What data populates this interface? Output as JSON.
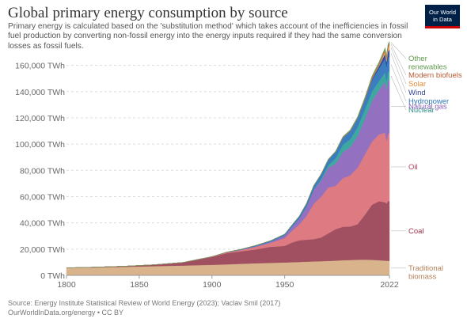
{
  "header": {
    "title": "Global primary energy consumption by source",
    "subtitle": "Primary energy is calculated based on the 'substitution method' which takes account of the inefficiencies in fossil fuel production by converting non-fossil energy into the energy inputs required if they had the same conversion losses as fossil fuels.",
    "logo_line1": "Our World",
    "logo_line2": "in Data"
  },
  "footer": {
    "source": "Source: Energy Institute Statistical Review of World Energy (2023); Vaclav Smil (2017)",
    "link": "OurWorldInData.org/energy • CC BY"
  },
  "chart_data": {
    "type": "area",
    "stacked": true,
    "x": [
      1800,
      1820,
      1840,
      1860,
      1880,
      1900,
      1910,
      1920,
      1930,
      1940,
      1950,
      1955,
      1960,
      1965,
      1970,
      1975,
      1980,
      1985,
      1990,
      1995,
      2000,
      2005,
      2010,
      2015,
      2019,
      2020,
      2021,
      2022
    ],
    "xticks": [
      "1800",
      "1850",
      "1900",
      "1950",
      "2022"
    ],
    "yticks": [
      "0 TWh",
      "20,000 TWh",
      "40,000 TWh",
      "60,000 TWh",
      "80,000 TWh",
      "100,000 TWh",
      "120,000 TWh",
      "140,000 TWh",
      "160,000 TWh"
    ],
    "ylim": [
      0,
      170000
    ],
    "grid": true,
    "series": [
      {
        "name": "Traditional biomass",
        "color": "#d9b38c",
        "label_color": "#b5805a",
        "values": [
          5600,
          6000,
          6500,
          7000,
          7500,
          8000,
          8400,
          8800,
          9200,
          9500,
          9800,
          10000,
          10200,
          10400,
          10600,
          10800,
          11000,
          11200,
          11500,
          11700,
          11900,
          12000,
          11800,
          11500,
          11200,
          11100,
          11100,
          11100
        ]
      },
      {
        "name": "Coal",
        "color": "#a05060",
        "label_color": "#a0344a",
        "values": [
          100,
          250,
          500,
          1100,
          2300,
          6000,
          8500,
          9500,
          10500,
          12200,
          12600,
          15000,
          16500,
          16800,
          17000,
          18000,
          21000,
          24000,
          25500,
          25500,
          27000,
          34000,
          42000,
          45000,
          44500,
          43500,
          45500,
          45500
        ]
      },
      {
        "name": "Oil",
        "color": "#dd7a82",
        "label_color": "#c1405f",
        "values": [
          0,
          0,
          0,
          0,
          5,
          200,
          500,
          1000,
          2000,
          3000,
          6000,
          9000,
          12000,
          18000,
          27000,
          31000,
          35000,
          33000,
          37000,
          39000,
          43000,
          46000,
          48000,
          51000,
          53000,
          48000,
          51000,
          52000
        ]
      },
      {
        "name": "Natural gas",
        "color": "#9370c0",
        "label_color": "#8a5cb5",
        "values": [
          0,
          0,
          0,
          0,
          0,
          60,
          150,
          300,
          500,
          800,
          2000,
          3000,
          4500,
          7000,
          10500,
          12500,
          15000,
          17000,
          20000,
          21500,
          24000,
          27000,
          31000,
          34000,
          39000,
          38500,
          40500,
          40000
        ]
      },
      {
        "name": "Nuclear",
        "color": "#3ea7a0",
        "label_color": "#2c8c86",
        "values": [
          0,
          0,
          0,
          0,
          0,
          0,
          0,
          0,
          0,
          0,
          0,
          0,
          20,
          100,
          200,
          1000,
          2000,
          4000,
          5500,
          6000,
          6800,
          7300,
          7200,
          6700,
          7000,
          6800,
          7000,
          6700
        ]
      },
      {
        "name": "Hydropower",
        "color": "#3c7dc0",
        "label_color": "#2e74b7",
        "values": [
          0,
          0,
          0,
          0,
          0,
          20,
          100,
          300,
          600,
          800,
          1000,
          1400,
          1900,
          2500,
          3100,
          3700,
          4300,
          5000,
          5500,
          6200,
          6800,
          7400,
          8700,
          9500,
          10500,
          10800,
          10800,
          11000
        ]
      },
      {
        "name": "Wind",
        "color": "#3050a0",
        "label_color": "#2e3f8f",
        "values": [
          0,
          0,
          0,
          0,
          0,
          0,
          0,
          0,
          0,
          0,
          0,
          0,
          0,
          0,
          0,
          0,
          0,
          0,
          10,
          20,
          80,
          260,
          880,
          2100,
          3600,
          4000,
          4600,
          5500
        ]
      },
      {
        "name": "Solar",
        "color": "#f0a060",
        "label_color": "#e58b3b",
        "values": [
          0,
          0,
          0,
          0,
          0,
          0,
          0,
          0,
          0,
          0,
          0,
          0,
          0,
          0,
          0,
          0,
          0,
          0,
          0,
          0,
          5,
          10,
          90,
          650,
          1800,
          2200,
          2700,
          3400
        ]
      },
      {
        "name": "Modern biofuels",
        "color": "#c07040",
        "label_color": "#b85a33",
        "values": [
          0,
          0,
          0,
          0,
          0,
          0,
          0,
          0,
          0,
          0,
          0,
          0,
          0,
          0,
          0,
          0,
          0,
          100,
          300,
          350,
          400,
          600,
          1200,
          1300,
          1500,
          1400,
          1500,
          1500
        ]
      },
      {
        "name": "Other renewables",
        "color": "#70a060",
        "label_color": "#5f9a4e",
        "values": [
          0,
          0,
          0,
          0,
          0,
          0,
          0,
          0,
          0,
          0,
          0,
          0,
          0,
          0,
          100,
          200,
          300,
          400,
          500,
          600,
          700,
          800,
          1000,
          1200,
          1400,
          1400,
          1500,
          1500
        ]
      }
    ],
    "labels": [
      {
        "series": "Other renewables",
        "lines": [
          "Other",
          "renewables"
        ]
      },
      {
        "series": "Modern biofuels",
        "lines": [
          "Modern biofuels"
        ]
      },
      {
        "series": "Solar",
        "lines": [
          "Solar"
        ]
      },
      {
        "series": "Wind",
        "lines": [
          "Wind"
        ]
      },
      {
        "series": "Hydropower",
        "lines": [
          "Hydropower"
        ]
      },
      {
        "series": "Nuclear",
        "lines": [
          "Nuclear"
        ]
      },
      {
        "series": "Natural gas",
        "lines": [
          "Natural gas"
        ]
      },
      {
        "series": "Oil",
        "lines": [
          "Oil"
        ]
      },
      {
        "series": "Coal",
        "lines": [
          "Coal"
        ]
      },
      {
        "series": "Traditional biomass",
        "lines": [
          "Traditional",
          "biomass"
        ]
      }
    ]
  }
}
